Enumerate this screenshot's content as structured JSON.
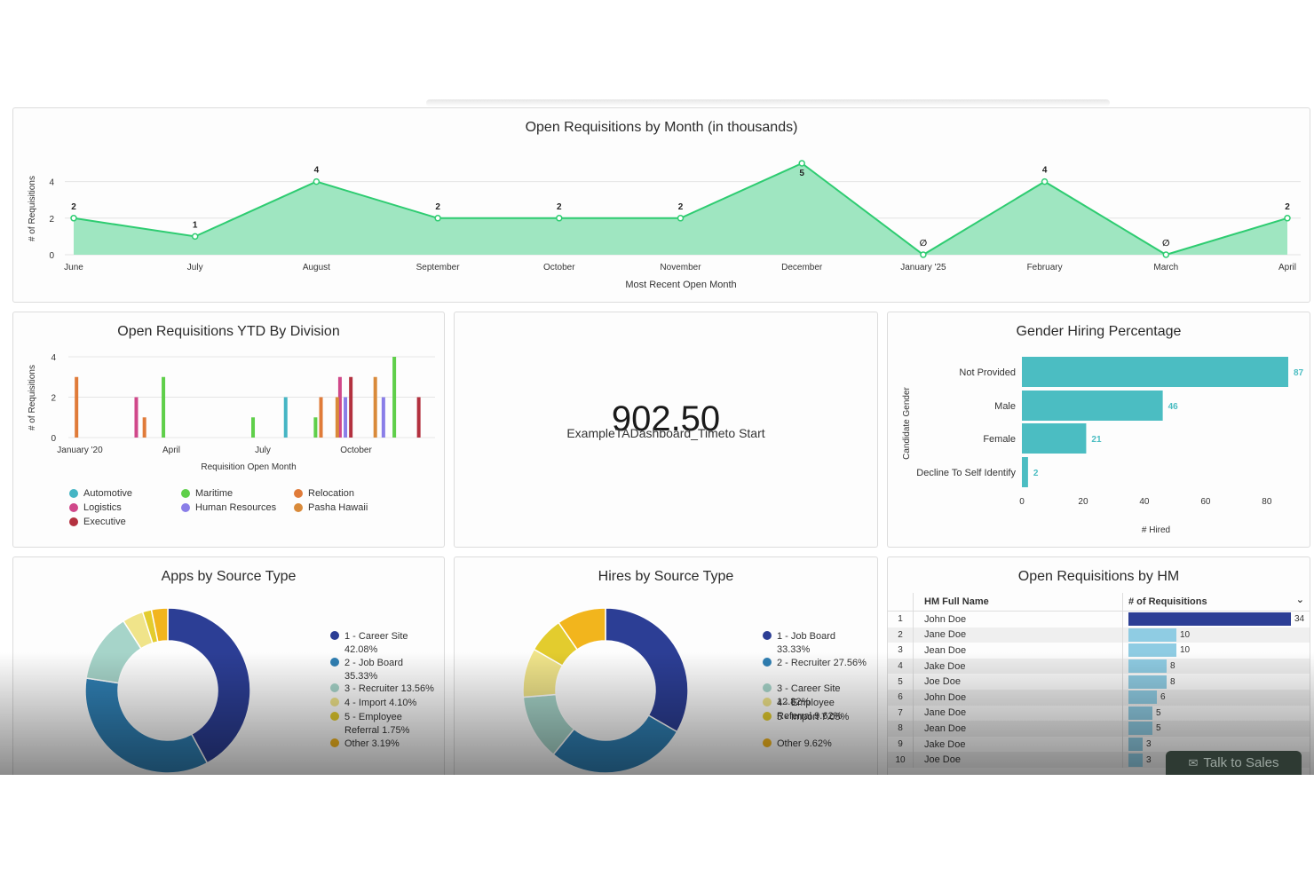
{
  "line_panel": {
    "title": "Open Requisitions by Month (in thousands)",
    "chart_data": {
      "type": "area",
      "title": "Open Requisitions by Month (in thousands)",
      "xlabel": "Most Recent Open Month",
      "ylabel": "# of Requisitions",
      "categories": [
        "June",
        "July",
        "August",
        "September",
        "October",
        "November",
        "December",
        "January '25",
        "February",
        "March",
        "April"
      ],
      "values": [
        2,
        1,
        4,
        2,
        2,
        2,
        5,
        0,
        4,
        0,
        2
      ],
      "point_labels": [
        "2",
        "1",
        "4",
        "2",
        "2",
        "2",
        "5",
        "∅",
        "4",
        "∅",
        "2"
      ],
      "yticks": [
        "0",
        "2",
        "4"
      ],
      "ylim": [
        0,
        5
      ],
      "color": "#2ecc71"
    }
  },
  "division_panel": {
    "title": "Open Requisitions YTD By Division",
    "chart_data": {
      "type": "bar",
      "title": "Open Requisitions YTD By Division",
      "xlabel": "Requisition Open Month",
      "ylabel": "# of Requisitions",
      "xticks": [
        "January '20",
        "April",
        "July",
        "October"
      ],
      "yticks": [
        "0",
        "2",
        "4"
      ],
      "ylim": [
        0,
        4
      ],
      "series": [
        {
          "name": "Automotive",
          "color": "#45b5c4",
          "points": [
            [
              8.0,
              2
            ]
          ]
        },
        {
          "name": "Logistics",
          "color": "#d0488a",
          "points": [
            [
              2.5,
              2
            ],
            [
              10.0,
              3
            ]
          ]
        },
        {
          "name": "Executive",
          "color": "#b3313f",
          "points": [
            [
              10.4,
              3
            ],
            [
              12.9,
              2
            ]
          ]
        },
        {
          "name": "Maritime",
          "color": "#5fcf4a",
          "points": [
            [
              3.5,
              3
            ],
            [
              6.8,
              1
            ],
            [
              9.1,
              1
            ],
            [
              12.0,
              4
            ]
          ]
        },
        {
          "name": "Human Resources",
          "color": "#8a7ee8",
          "points": [
            [
              10.2,
              2
            ],
            [
              11.6,
              2
            ]
          ]
        },
        {
          "name": "Relocation",
          "color": "#e07b39",
          "points": [
            [
              0.3,
              3
            ],
            [
              2.8,
              1
            ],
            [
              9.3,
              2
            ]
          ]
        },
        {
          "name": "Pasha Hawaii",
          "color": "#d98a3a",
          "points": [
            [
              9.9,
              2
            ],
            [
              11.3,
              3
            ]
          ]
        }
      ]
    }
  },
  "kpi": {
    "value": "902.50",
    "label": "ExampleTADashboard_Timeto Start"
  },
  "gender_panel": {
    "title": "Gender Hiring Percentage",
    "chart_data": {
      "type": "bar",
      "orientation": "horizontal",
      "title": "Gender Hiring Percentage",
      "ylabel": "Candidate Gender",
      "xlabel": "# Hired",
      "categories": [
        "Not Provided",
        "Male",
        "Female",
        "Decline To Self Identify"
      ],
      "values": [
        87,
        46,
        21,
        2
      ],
      "value_labels": [
        "87",
        "46",
        "21",
        "2"
      ],
      "xticks": [
        "0",
        "20",
        "40",
        "60",
        "80"
      ],
      "xlim": [
        0,
        87
      ],
      "color": "#4bbdc2"
    }
  },
  "apps_panel": {
    "title": "Apps by Source Type",
    "chart_data": {
      "type": "pie",
      "title": "Apps by Source Type",
      "slices": [
        {
          "label": "1 - Career Site",
          "pct_label": "42.08%",
          "value": 42.08,
          "color": "#2c3e95"
        },
        {
          "label": "2 - Job Board",
          "pct_label": "35.33%",
          "value": 35.33,
          "color": "#2f7fb3"
        },
        {
          "label": "3 - Recruiter",
          "pct_label": "13.56%",
          "value": 13.56,
          "color": "#a6d4c9"
        },
        {
          "label": "4 - Import",
          "pct_label": "4.10%",
          "value": 4.1,
          "color": "#f0e48a"
        },
        {
          "label": "5 - Employee Referral",
          "pct_label": "1.75%",
          "value": 1.75,
          "color": "#e3cc2e"
        },
        {
          "label": "Other",
          "pct_label": "3.19%",
          "value": 3.19,
          "color": "#f2b51d"
        }
      ]
    },
    "legend": [
      {
        "line1": "1 - Career Site",
        "line2": "42.08%"
      },
      {
        "line1": "2 - Job Board",
        "line2": "35.33%"
      },
      {
        "line1": "3 - Recruiter 13.56%",
        "line2": ""
      },
      {
        "line1": "4 - Import 4.10%",
        "line2": ""
      },
      {
        "line1": "5 - Employee",
        "line2": "Referral 1.75%"
      },
      {
        "line1": "Other 3.19%",
        "line2": ""
      }
    ]
  },
  "hires_panel": {
    "title": "Hires by Source Type",
    "chart_data": {
      "type": "pie",
      "title": "Hires by Source Type",
      "slices": [
        {
          "label": "1 - Job Board",
          "pct_label": "33.33%",
          "value": 33.33,
          "color": "#2c3e95"
        },
        {
          "label": "2 - Recruiter",
          "pct_label": "27.56%",
          "value": 27.56,
          "color": "#2f7fb3"
        },
        {
          "label": "3 - Career Site",
          "pct_label": "12.82%",
          "value": 12.82,
          "color": "#a6d4c9"
        },
        {
          "label": "4 - Employee Referral",
          "pct_label": "9.62%",
          "value": 9.62,
          "color": "#f0e48a"
        },
        {
          "label": "5 - Import",
          "pct_label": "7.05%",
          "value": 7.05,
          "color": "#e3cc2e"
        },
        {
          "label": "Other",
          "pct_label": "9.62%",
          "value": 9.62,
          "color": "#f2b51d"
        }
      ]
    },
    "legend": [
      {
        "line1": "1 - Job Board",
        "line2": "33.33%"
      },
      {
        "line1": "2 - Recruiter 27.56%",
        "line2": ""
      },
      {
        "line1": "3 - Career Site",
        "line2": "12.82%"
      },
      {
        "line1": "4 - Employee",
        "line2": "Referral 9.62%"
      },
      {
        "line1": "5 - Import 7.05%",
        "line2": ""
      },
      {
        "line1": "Other 9.62%",
        "line2": ""
      }
    ]
  },
  "hm_panel": {
    "title": "Open Requisitions by HM",
    "col_name": "HM Full Name",
    "col_count": "# of Requisitions",
    "sort_icon": "chevron-down-icon",
    "max": 34,
    "rows": [
      {
        "num": "1",
        "name": "John Doe",
        "count": 34
      },
      {
        "num": "2",
        "name": "Jane Doe",
        "count": 10
      },
      {
        "num": "3",
        "name": "Jean Doe",
        "count": 10
      },
      {
        "num": "4",
        "name": "Jake Doe",
        "count": 8
      },
      {
        "num": "5",
        "name": "Joe Doe",
        "count": 8
      },
      {
        "num": "6",
        "name": "John Doe",
        "count": 6
      },
      {
        "num": "7",
        "name": "Jane Doe",
        "count": 5
      },
      {
        "num": "8",
        "name": "Jean Doe",
        "count": 5
      },
      {
        "num": "9",
        "name": "Jake Doe",
        "count": 3
      },
      {
        "num": "10",
        "name": "Joe Doe",
        "count": 3
      }
    ]
  },
  "talk_to_sales": "Talk to Sales"
}
